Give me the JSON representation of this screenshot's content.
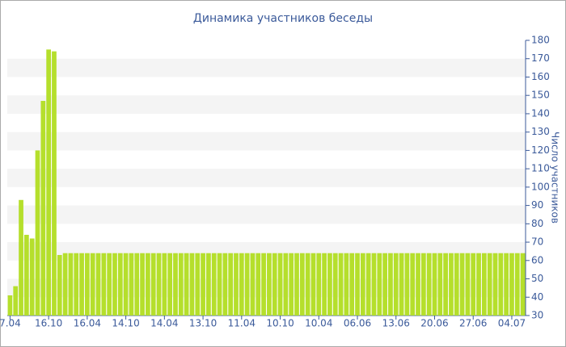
{
  "chart_data": {
    "type": "bar",
    "title": "Динамика участников беседы",
    "y_label": "Число участников",
    "categories": [
      "7.04",
      null,
      null,
      null,
      null,
      null,
      null,
      "16.10",
      null,
      null,
      null,
      null,
      null,
      null,
      "16.04",
      null,
      null,
      null,
      null,
      null,
      null,
      "14.10",
      null,
      null,
      null,
      null,
      null,
      null,
      "14.04",
      null,
      null,
      null,
      null,
      null,
      null,
      "13.10",
      null,
      null,
      null,
      null,
      null,
      null,
      "11.04",
      null,
      null,
      null,
      null,
      null,
      null,
      "10.10",
      null,
      null,
      null,
      null,
      null,
      null,
      "10.04",
      null,
      null,
      null,
      null,
      null,
      null,
      "06.06",
      null,
      null,
      null,
      null,
      null,
      null,
      "13.06",
      null,
      null,
      null,
      null,
      null,
      null,
      "20.06",
      null,
      null,
      null,
      null,
      null,
      null,
      "27.06",
      null,
      null,
      null,
      null,
      null,
      null,
      "04.07",
      null,
      null
    ],
    "values": [
      41,
      46,
      93,
      74,
      72,
      120,
      147,
      175,
      174,
      63,
      64,
      64,
      64,
      64,
      64,
      64,
      64,
      64,
      64,
      64,
      64,
      64,
      64,
      64,
      64,
      64,
      64,
      64,
      64,
      64,
      64,
      64,
      64,
      64,
      64,
      64,
      64,
      64,
      64,
      64,
      64,
      64,
      64,
      64,
      64,
      64,
      64,
      64,
      64,
      64,
      64,
      64,
      64,
      64,
      64,
      64,
      64,
      64,
      64,
      64,
      64,
      64,
      64,
      64,
      64,
      64,
      64,
      64,
      64,
      64,
      64,
      64,
      64,
      64,
      64,
      64,
      64,
      64,
      64,
      64,
      64,
      64,
      64,
      64,
      64,
      64,
      64,
      64,
      64,
      64,
      64,
      64,
      64,
      64
    ],
    "color": "#b5df2c",
    "ylim": [
      30,
      180
    ],
    "yticks": [
      30,
      40,
      50,
      60,
      70,
      80,
      90,
      100,
      110,
      120,
      130,
      140,
      150,
      160,
      170,
      180
    ],
    "y_axis_side": "right",
    "grid": "bands"
  }
}
